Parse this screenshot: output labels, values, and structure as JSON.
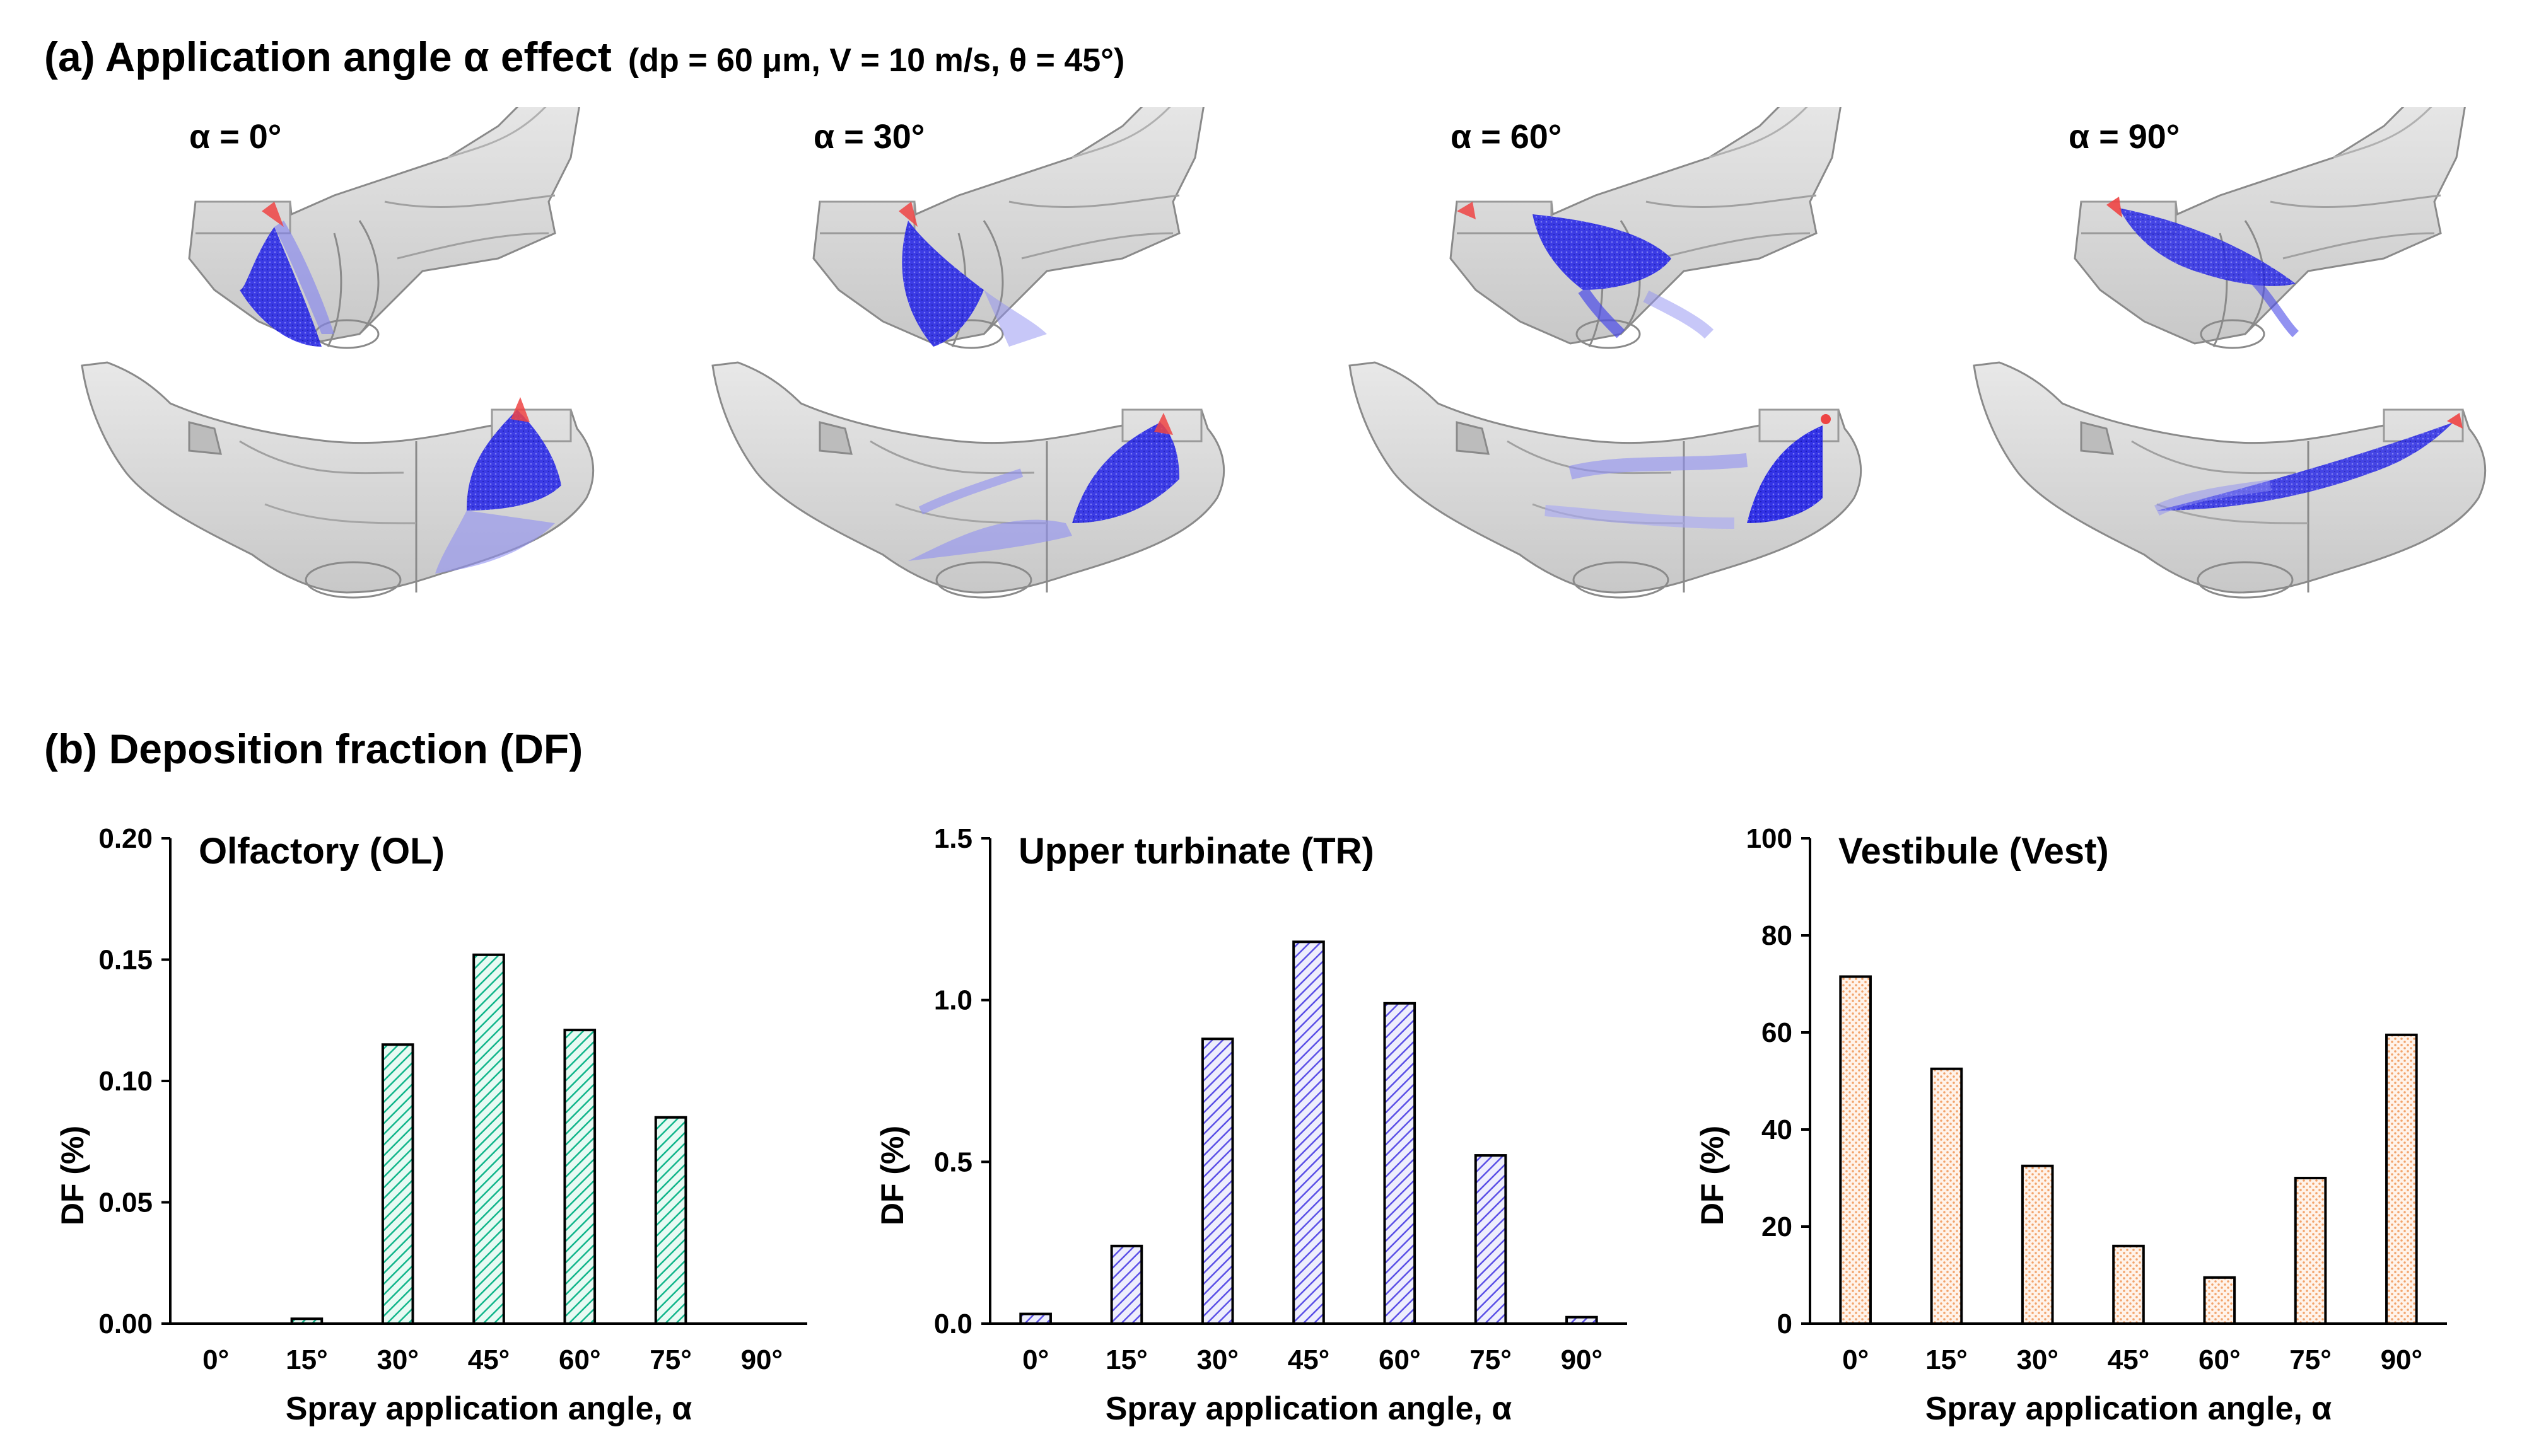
{
  "figure": {
    "panel_a_title": "(a) Application angle α effect",
    "panel_a_params": "(dp = 60 μm, V = 10 m/s, θ = 45°)",
    "panel_b_title": "(b) Deposition fraction (DF)",
    "alpha_labels": [
      "α = 0°",
      "α = 30°",
      "α = 60°",
      "α = 90°"
    ],
    "colors": {
      "olfactory": "#10b58a",
      "turbinate": "#5a4fe6",
      "vestibule": "#f2a36b",
      "spray": "#2626e0",
      "nozzle": "#ee4444",
      "model": "#d4d4d4"
    }
  },
  "chart_data": [
    {
      "type": "bar",
      "title": "Olfactory (OL)",
      "xlabel": "Spray application angle, α",
      "ylabel": "DF (%)",
      "categories": [
        "0°",
        "15°",
        "30°",
        "45°",
        "60°",
        "75°",
        "90°"
      ],
      "values": [
        0,
        0.002,
        0.115,
        0.152,
        0.121,
        0.085,
        0
      ],
      "ylim": [
        0,
        0.2
      ],
      "yticks": [
        "0.00",
        "0.05",
        "0.10",
        "0.15",
        "0.20"
      ],
      "pattern": "hatch-green"
    },
    {
      "type": "bar",
      "title": "Upper turbinate (TR)",
      "xlabel": "Spray application angle, α",
      "ylabel": "DF (%)",
      "categories": [
        "0°",
        "15°",
        "30°",
        "45°",
        "60°",
        "75°",
        "90°"
      ],
      "values": [
        0.03,
        0.24,
        0.88,
        1.18,
        0.99,
        0.52,
        0.02
      ],
      "ylim": [
        0,
        1.5
      ],
      "yticks": [
        "0.0",
        "0.5",
        "1.0",
        "1.5"
      ],
      "pattern": "hatch-blue"
    },
    {
      "type": "bar",
      "title": "Vestibule (Vest)",
      "xlabel": "Spray application angle, α",
      "ylabel": "DF (%)",
      "categories": [
        "0°",
        "15°",
        "30°",
        "45°",
        "60°",
        "75°",
        "90°"
      ],
      "values": [
        71.5,
        52.5,
        32.5,
        16,
        9.5,
        30,
        59.5
      ],
      "ylim": [
        0,
        100
      ],
      "yticks": [
        "0",
        "20",
        "40",
        "60",
        "80",
        "100"
      ],
      "pattern": "dots-orange"
    }
  ]
}
